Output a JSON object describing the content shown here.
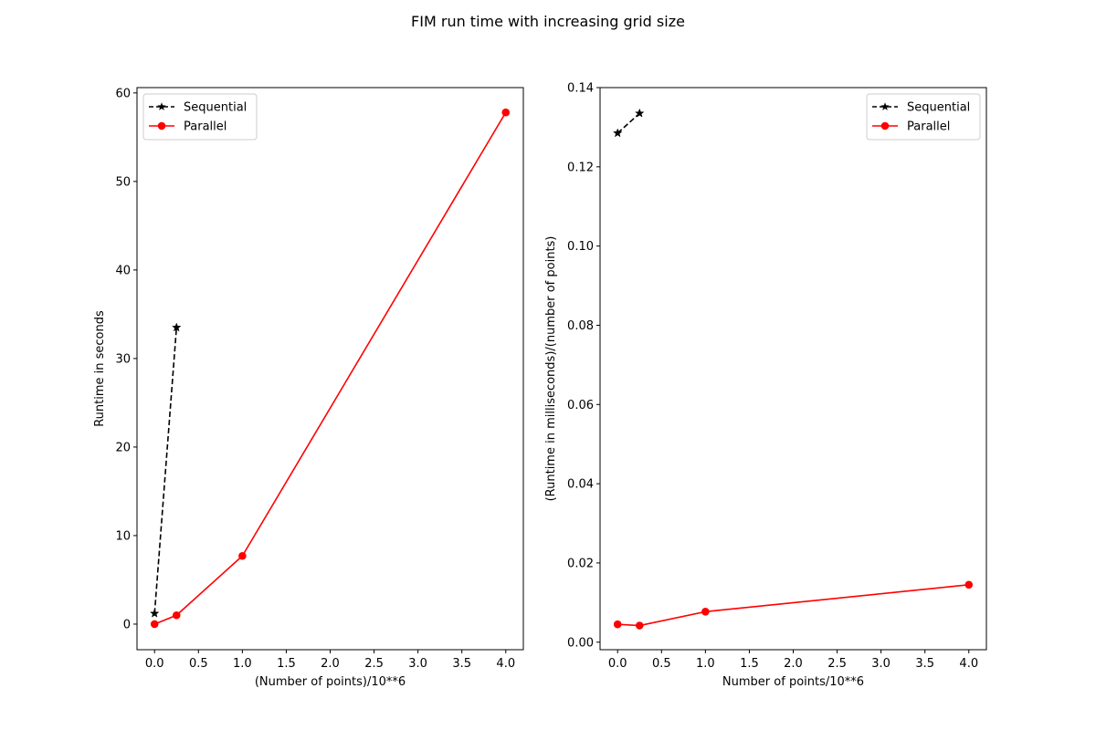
{
  "figure_title": "FIM run time with increasing grid size",
  "colors": {
    "sequential": "#000000",
    "parallel": "#ff0000"
  },
  "chart_data": [
    {
      "type": "line",
      "xlabel": "(Number of points)/10**6",
      "ylabel": "Runtime in seconds",
      "xlim": [
        -0.2,
        4.2
      ],
      "ylim": [
        -2.89,
        60.6
      ],
      "xticks": [
        0.0,
        0.5,
        1.0,
        1.5,
        2.0,
        2.5,
        3.0,
        3.5,
        4.0
      ],
      "xtick_labels": [
        "0.0",
        "0.5",
        "1.0",
        "1.5",
        "2.0",
        "2.5",
        "3.0",
        "3.5",
        "4.0"
      ],
      "yticks": [
        0,
        10,
        20,
        30,
        40,
        50,
        60
      ],
      "ytick_labels": [
        "0",
        "10",
        "20",
        "30",
        "40",
        "50",
        "60"
      ],
      "grid": false,
      "legend": "top-left",
      "series": [
        {
          "name": "Sequential",
          "style": "dashed",
          "marker": "star",
          "x": [
            0.0,
            0.25
          ],
          "y": [
            1.2,
            33.5
          ]
        },
        {
          "name": "Parallel",
          "style": "solid",
          "marker": "circle",
          "x": [
            0.0,
            0.25,
            1.0,
            4.0
          ],
          "y": [
            0.0,
            1.0,
            7.7,
            57.8
          ]
        }
      ]
    },
    {
      "type": "line",
      "xlabel": "Number of points/10**6",
      "ylabel": "(Runtime in milliseconds)/(number of points)",
      "xlim": [
        -0.2,
        4.2
      ],
      "ylim": [
        -0.0019,
        0.14
      ],
      "xticks": [
        0.0,
        0.5,
        1.0,
        1.5,
        2.0,
        2.5,
        3.0,
        3.5,
        4.0
      ],
      "xtick_labels": [
        "0.0",
        "0.5",
        "1.0",
        "1.5",
        "2.0",
        "2.5",
        "3.0",
        "3.5",
        "4.0"
      ],
      "yticks": [
        0.0,
        0.02,
        0.04,
        0.06,
        0.08,
        0.1,
        0.12,
        0.14
      ],
      "ytick_labels": [
        "0.00",
        "0.02",
        "0.04",
        "0.06",
        "0.08",
        "0.10",
        "0.12",
        "0.14"
      ],
      "grid": false,
      "legend": "top-right",
      "series": [
        {
          "name": "Sequential",
          "style": "dashed",
          "marker": "star",
          "x": [
            0.0,
            0.25
          ],
          "y": [
            0.1285,
            0.1335
          ]
        },
        {
          "name": "Parallel",
          "style": "solid",
          "marker": "circle",
          "x": [
            0.0,
            0.25,
            1.0,
            4.0
          ],
          "y": [
            0.0045,
            0.0042,
            0.0077,
            0.0145
          ]
        }
      ]
    }
  ]
}
